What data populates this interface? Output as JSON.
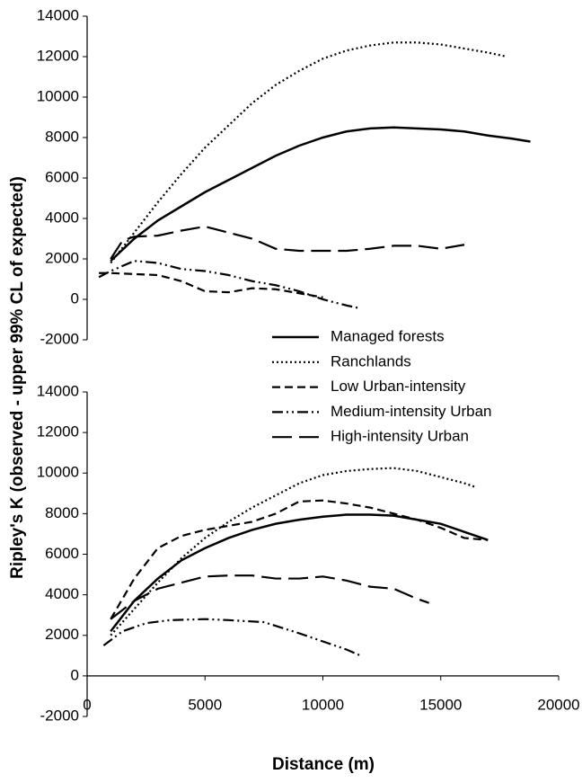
{
  "chart_data": [
    {
      "type": "line",
      "xlim": [
        0,
        20000
      ],
      "ylim": [
        -2000,
        14000
      ],
      "yticks": [
        -2000,
        0,
        2000,
        4000,
        6000,
        8000,
        10000,
        12000,
        14000
      ],
      "series": [
        {
          "name": "Managed forests",
          "color": "#000000",
          "dash": "solid",
          "x": [
            1000,
            2000,
            3000,
            4000,
            5000,
            6000,
            7000,
            8000,
            9000,
            10000,
            11000,
            12000,
            13000,
            14000,
            15000,
            16000,
            17000,
            18000,
            18800
          ],
          "values": [
            1900,
            3000,
            3900,
            4600,
            5300,
            5900,
            6500,
            7100,
            7600,
            8000,
            8300,
            8450,
            8500,
            8450,
            8400,
            8300,
            8100,
            7950,
            7800
          ]
        },
        {
          "name": "Ranchlands",
          "color": "#000000",
          "dash": "dotted",
          "x": [
            1000,
            2000,
            3000,
            4000,
            5000,
            6000,
            7000,
            8000,
            9000,
            10000,
            11000,
            12000,
            13000,
            14000,
            15000,
            16000,
            17000,
            17800
          ],
          "values": [
            1800,
            3300,
            4800,
            6200,
            7500,
            8600,
            9700,
            10600,
            11300,
            11900,
            12300,
            12550,
            12700,
            12700,
            12600,
            12400,
            12200,
            12000
          ]
        },
        {
          "name": "Low Urban-intensity",
          "color": "#000000",
          "dash": "short",
          "x": [
            500,
            1000,
            2000,
            3000,
            4000,
            5000,
            6000,
            7000,
            8000,
            9000,
            10000
          ],
          "values": [
            1300,
            1300,
            1250,
            1200,
            900,
            400,
            350,
            550,
            500,
            300,
            100
          ]
        },
        {
          "name": "Medium-intensity Urban",
          "color": "#000000",
          "dash": "dashdotdot",
          "x": [
            500,
            1000,
            2000,
            3000,
            4000,
            5000,
            6000,
            7000,
            8000,
            9000,
            10000,
            11000,
            11600
          ],
          "values": [
            1100,
            1400,
            1900,
            1800,
            1500,
            1400,
            1200,
            900,
            700,
            400,
            0,
            -300,
            -450
          ]
        },
        {
          "name": "High-intensity Urban",
          "color": "#000000",
          "dash": "long",
          "x": [
            1000,
            1500,
            2000,
            3000,
            4000,
            5000,
            6000,
            7000,
            8000,
            9000,
            10000,
            11000,
            12000,
            13000,
            14000,
            15000,
            16000
          ],
          "values": [
            2000,
            2900,
            3100,
            3150,
            3400,
            3600,
            3300,
            3000,
            2500,
            2400,
            2400,
            2400,
            2500,
            2650,
            2650,
            2500,
            2700
          ]
        }
      ]
    },
    {
      "type": "line",
      "xlabel": "Distance (m)",
      "ylabel": "Ripley's K (observed - upper 99% CL of expected)",
      "xlim": [
        0,
        20000
      ],
      "ylim": [
        -2000,
        14000
      ],
      "xticks": [
        0,
        5000,
        10000,
        15000,
        20000
      ],
      "yticks": [
        -2000,
        0,
        2000,
        4000,
        6000,
        8000,
        10000,
        12000,
        14000
      ],
      "series": [
        {
          "color": "#000000",
          "dash": "solid",
          "x": [
            1000,
            2000,
            3000,
            4000,
            5000,
            6000,
            7000,
            8000,
            9000,
            10000,
            11000,
            12000,
            13000,
            14000,
            15000,
            16000,
            17000
          ],
          "values": [
            2200,
            3700,
            4800,
            5700,
            6300,
            6800,
            7200,
            7500,
            7700,
            7850,
            7950,
            7950,
            7900,
            7700,
            7500,
            7100,
            6700
          ]
        },
        {
          "color": "#000000",
          "dash": "dotted",
          "x": [
            1000,
            2000,
            3000,
            4000,
            5000,
            6000,
            7000,
            8000,
            9000,
            10000,
            11000,
            12000,
            13000,
            14000,
            15000,
            16000,
            16500
          ],
          "values": [
            2000,
            3300,
            4600,
            5800,
            6800,
            7600,
            8300,
            8900,
            9500,
            9900,
            10100,
            10200,
            10250,
            10100,
            9800,
            9500,
            9300
          ]
        },
        {
          "color": "#000000",
          "dash": "short",
          "x": [
            1000,
            2000,
            3000,
            4000,
            5000,
            6000,
            7000,
            8000,
            9000,
            10000,
            11000,
            12000,
            13000,
            14000,
            15000,
            16000,
            17000
          ],
          "values": [
            2800,
            4800,
            6300,
            6900,
            7200,
            7400,
            7600,
            8000,
            8600,
            8650,
            8500,
            8300,
            8000,
            7700,
            7300,
            6800,
            6700
          ]
        },
        {
          "color": "#000000",
          "dash": "dashdotdot",
          "x": [
            700,
            1500,
            2500,
            3500,
            5000,
            6000,
            7500,
            9000,
            10000,
            11000,
            11600
          ],
          "values": [
            1500,
            2200,
            2600,
            2750,
            2800,
            2750,
            2650,
            2100,
            1700,
            1300,
            1000
          ]
        },
        {
          "color": "#000000",
          "dash": "long",
          "x": [
            1000,
            2000,
            3000,
            4000,
            5000,
            6000,
            7000,
            8000,
            9000,
            10000,
            11000,
            12000,
            13000,
            14000,
            14500
          ],
          "values": [
            2800,
            3700,
            4300,
            4600,
            4900,
            4950,
            4950,
            4800,
            4800,
            4900,
            4700,
            4400,
            4300,
            3800,
            3600
          ]
        }
      ]
    }
  ]
}
